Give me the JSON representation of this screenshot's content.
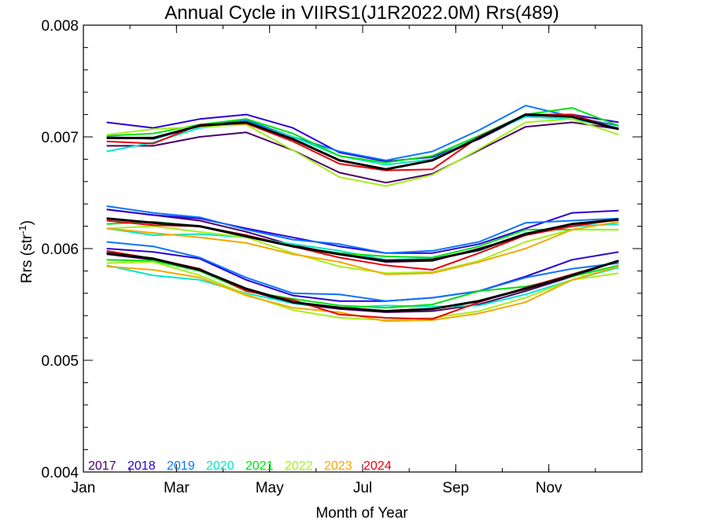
{
  "chart_data": {
    "type": "line",
    "title": "Annual Cycle in VIIRS1(J1R2022.0M) Rrs(489)",
    "xlabel": "Month of Year",
    "ylabel_main": "Rrs (str",
    "ylabel_sup": "-1",
    "ylabel_close": ")",
    "xlim": [
      0.5,
      12.5
    ],
    "ylim": [
      0.004,
      0.008
    ],
    "xticks": [
      {
        "x": 0.5,
        "label": "Jan"
      },
      {
        "x": 2.5,
        "label": "Mar"
      },
      {
        "x": 4.5,
        "label": "May"
      },
      {
        "x": 6.5,
        "label": "Jul"
      },
      {
        "x": 8.5,
        "label": "Sep"
      },
      {
        "x": 10.5,
        "label": "Nov"
      }
    ],
    "yticks": [
      {
        "y": 0.004,
        "label": "0.004"
      },
      {
        "y": 0.005,
        "label": "0.005"
      },
      {
        "y": 0.006,
        "label": "0.006"
      },
      {
        "y": 0.007,
        "label": "0.007"
      },
      {
        "y": 0.008,
        "label": "0.008"
      }
    ],
    "x": [
      1,
      2,
      3,
      4,
      5,
      6,
      7,
      8,
      9,
      10,
      11,
      12
    ],
    "legend_placement": "bottom-left",
    "series": [
      {
        "name": "2017",
        "color": "#4b0066",
        "groups": [
          [
            0.00692,
            0.00692,
            0.007,
            0.00704,
            0.00688,
            0.00668,
            0.00659,
            0.00667,
            0.00688,
            0.00709,
            0.00713,
            0.00707
          ],
          [
            0.00635,
            0.0063,
            0.00625,
            0.00615,
            0.00603,
            0.00595,
            0.00588,
            0.00589,
            0.006,
            0.00612,
            0.00622,
            0.00626
          ],
          [
            0.00595,
            0.0059,
            0.0058,
            0.00563,
            0.00551,
            0.00546,
            0.00543,
            0.00544,
            0.0055,
            0.00562,
            0.00575,
            0.00589
          ]
        ]
      },
      {
        "name": "2018",
        "color": "#2a00d8",
        "groups": [
          [
            0.00713,
            0.00708,
            0.00716,
            0.0072,
            0.00708,
            0.00686,
            0.00678,
            0.00682,
            0.00698,
            0.00719,
            0.0072,
            0.00713
          ],
          [
            0.00635,
            0.0063,
            0.00627,
            0.00618,
            0.0061,
            0.00602,
            0.00596,
            0.00596,
            0.00604,
            0.00618,
            0.00632,
            0.00634
          ],
          [
            0.006,
            0.00597,
            0.00591,
            0.00572,
            0.00558,
            0.00553,
            0.00553,
            0.00556,
            0.00562,
            0.00575,
            0.0059,
            0.00597
          ]
        ]
      },
      {
        "name": "2019",
        "color": "#0a75ff",
        "groups": [
          [
            0.007,
            0.00698,
            0.0071,
            0.00715,
            0.007,
            0.00687,
            0.00679,
            0.00687,
            0.00706,
            0.00728,
            0.00718,
            0.0071
          ],
          [
            0.00638,
            0.00632,
            0.00628,
            0.00617,
            0.00608,
            0.00604,
            0.00596,
            0.00598,
            0.00606,
            0.00623,
            0.00625,
            0.00627
          ],
          [
            0.00606,
            0.00602,
            0.00592,
            0.00574,
            0.0056,
            0.00559,
            0.00553,
            0.00556,
            0.00562,
            0.00574,
            0.00582,
            0.00587
          ]
        ]
      },
      {
        "name": "2020",
        "color": "#00e8c8",
        "groups": [
          [
            0.00687,
            0.00695,
            0.00708,
            0.00713,
            0.007,
            0.00683,
            0.00675,
            0.0068,
            0.007,
            0.00718,
            0.00716,
            0.00708
          ],
          [
            0.00618,
            0.00612,
            0.00613,
            0.0061,
            0.00604,
            0.00598,
            0.0059,
            0.00591,
            0.00598,
            0.00614,
            0.0062,
            0.00622
          ],
          [
            0.00585,
            0.00576,
            0.00572,
            0.0056,
            0.00551,
            0.00547,
            0.00549,
            0.00548,
            0.00549,
            0.00559,
            0.00572,
            0.00583
          ]
        ]
      },
      {
        "name": "2021",
        "color": "#00e010",
        "groups": [
          [
            0.00701,
            0.00703,
            0.00711,
            0.00716,
            0.00703,
            0.00683,
            0.00677,
            0.00683,
            0.00701,
            0.0072,
            0.00726,
            0.0071
          ],
          [
            0.00622,
            0.00624,
            0.0062,
            0.00612,
            0.00602,
            0.00596,
            0.00593,
            0.00592,
            0.00602,
            0.00617,
            0.00617,
            0.00617
          ],
          [
            0.0059,
            0.00589,
            0.0058,
            0.00562,
            0.00555,
            0.00549,
            0.00547,
            0.0055,
            0.00562,
            0.00566,
            0.00575,
            0.00585
          ]
        ]
      },
      {
        "name": "2022",
        "color": "#a6ef1e",
        "groups": [
          [
            0.00702,
            0.00707,
            0.00709,
            0.00711,
            0.00688,
            0.00664,
            0.00656,
            0.00666,
            0.00689,
            0.00713,
            0.00716,
            0.00702
          ],
          [
            0.00618,
            0.0062,
            0.00615,
            0.0061,
            0.00596,
            0.00584,
            0.00578,
            0.00579,
            0.00589,
            0.00606,
            0.00617,
            0.00617
          ],
          [
            0.00587,
            0.00588,
            0.00576,
            0.00559,
            0.00545,
            0.00538,
            0.00536,
            0.00538,
            0.00544,
            0.00556,
            0.00572,
            0.00578
          ]
        ]
      },
      {
        "name": "2023",
        "color": "#f4a800",
        "groups": [
          [],
          [
            0.00618,
            0.00614,
            0.0061,
            0.00605,
            0.00595,
            0.00588,
            0.00577,
            0.00578,
            0.00588,
            0.006,
            0.00617,
            0.00624
          ],
          [
            0.00584,
            0.00581,
            0.00574,
            0.00558,
            0.00547,
            0.00543,
            0.00535,
            0.00536,
            0.00542,
            0.00552,
            0.00572,
            0.00584
          ]
        ]
      },
      {
        "name": "2024",
        "color": "#e8000a",
        "groups": [
          [
            0.00696,
            0.00694,
            0.00711,
            0.00712,
            0.00696,
            0.00676,
            0.0067,
            0.00671,
            0.007,
            0.0072,
            0.0072,
            0.00707
          ],
          [
            0.00625,
            0.00621,
            0.0062,
            0.00612,
            0.00602,
            0.00592,
            0.00585,
            0.00581,
            0.00596,
            0.00612,
            0.0062,
            0.00626
          ],
          [
            0.00598,
            0.00591,
            0.00582,
            0.00562,
            0.00554,
            0.00541,
            0.00538,
            0.00537,
            0.00552,
            0.00565,
            0.00577,
            0.00589
          ]
        ]
      },
      {
        "name": "",
        "color": "#000000",
        "mean": true,
        "groups": [
          [
            0.00699,
            0.00699,
            0.0071,
            0.00713,
            0.00698,
            0.00679,
            0.00671,
            0.00679,
            0.00699,
            0.0072,
            0.00718,
            0.00707
          ],
          [
            0.00627,
            0.00623,
            0.0062,
            0.00611,
            0.00602,
            0.00595,
            0.00589,
            0.0059,
            0.00599,
            0.00613,
            0.00622,
            0.00626
          ],
          [
            0.00596,
            0.00591,
            0.00581,
            0.00564,
            0.00552,
            0.00547,
            0.00544,
            0.00546,
            0.00553,
            0.00564,
            0.00576,
            0.00589
          ]
        ]
      }
    ]
  }
}
